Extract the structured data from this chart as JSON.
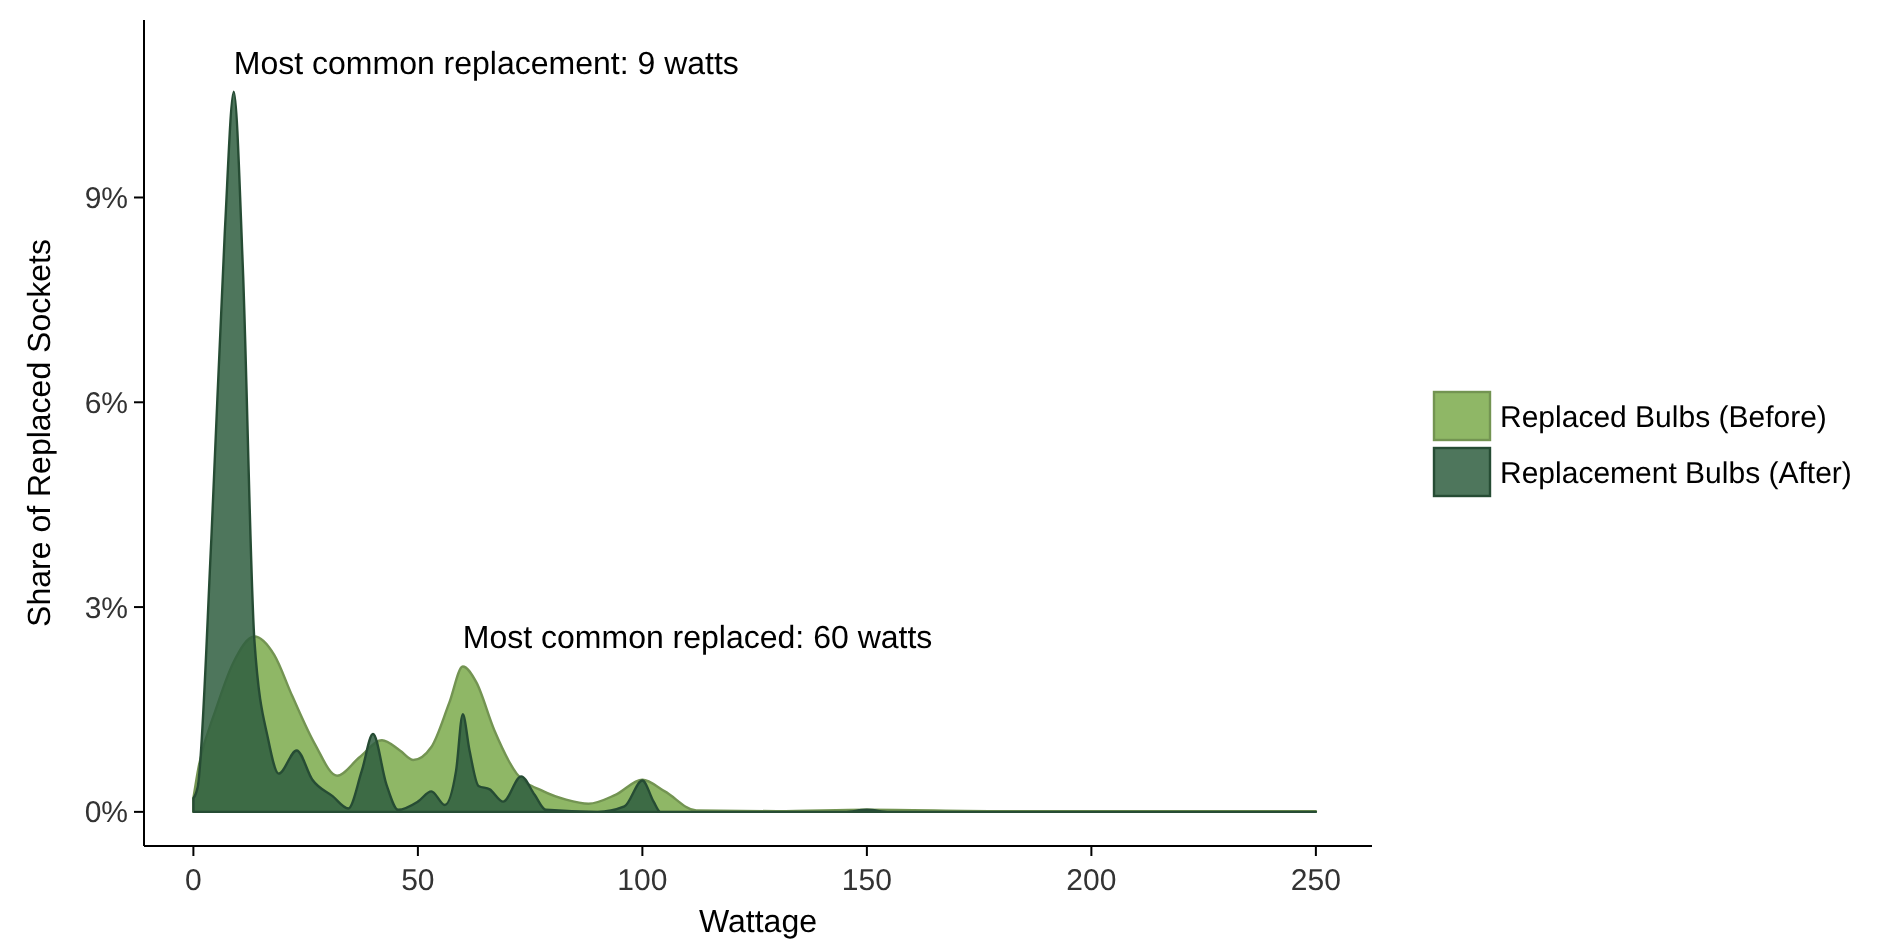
{
  "chart_data": {
    "type": "area",
    "xlabel": "Wattage",
    "ylabel": "Share of Replaced Sockets",
    "xlim": [
      -11,
      262.5
    ],
    "xticks": [
      0,
      50,
      100,
      150,
      200,
      250
    ],
    "ylim": [
      -0.5,
      11.6
    ],
    "yticks": [
      {
        "value": 0,
        "label": "0%"
      },
      {
        "value": 3,
        "label": "3%"
      },
      {
        "value": 6,
        "label": "6%"
      },
      {
        "value": 9,
        "label": "9%"
      }
    ],
    "grid": false,
    "legend": "right",
    "annotations": [
      {
        "text": "Most common replacement: 9 watts",
        "x": 9,
        "y": 10.55
      },
      {
        "text": "Most common replaced: 60 watts",
        "x": 60,
        "y": 2.13
      }
    ],
    "series": [
      {
        "name": "Replaced Bulbs (Before)",
        "color": "#8fb766",
        "x": [
          0,
          1,
          5,
          9,
          13.6,
          18,
          22,
          27,
          32,
          37,
          42,
          46,
          49,
          53,
          57,
          60,
          63,
          67,
          72,
          78,
          83,
          88,
          94,
          100,
          105,
          112,
          130,
          150,
          180,
          220,
          250
        ],
        "values": [
          0.2,
          0.6,
          1.5,
          2.2,
          2.57,
          2.3,
          1.7,
          1.0,
          0.53,
          0.8,
          1.05,
          0.9,
          0.76,
          0.95,
          1.6,
          2.13,
          1.9,
          1.2,
          0.56,
          0.3,
          0.18,
          0.12,
          0.25,
          0.47,
          0.3,
          0.02,
          0.01,
          0.03,
          0.01,
          0.01,
          0.01
        ]
      },
      {
        "name": "Replacement Bulbs (After)",
        "color": "#2f5e40",
        "x": [
          0,
          1,
          4,
          7,
          9,
          11,
          13.6,
          16.7,
          19,
          23,
          26.5,
          31,
          34.5,
          37.5,
          40,
          43,
          45.6,
          50,
          53,
          56,
          58.5,
          60,
          61.5,
          63.5,
          66,
          69,
          73,
          76,
          78.5,
          90,
          96,
          100,
          102.5,
          104,
          130,
          145,
          150,
          155,
          180,
          220,
          250
        ],
        "values": [
          0.2,
          0.38,
          4.0,
          8.5,
          10.55,
          8.0,
          2.5,
          1.05,
          0.56,
          0.9,
          0.47,
          0.23,
          0.05,
          0.6,
          1.14,
          0.4,
          0.03,
          0.15,
          0.3,
          0.1,
          0.6,
          1.43,
          0.9,
          0.38,
          0.33,
          0.15,
          0.52,
          0.25,
          0.03,
          0.0,
          0.08,
          0.46,
          0.15,
          0.0,
          0.0,
          0.0,
          0.03,
          0.0,
          0.0,
          0.0,
          0.0
        ]
      }
    ]
  }
}
